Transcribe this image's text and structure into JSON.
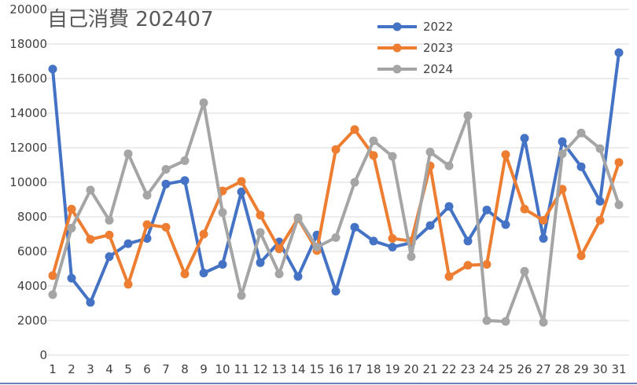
{
  "chart_data": {
    "type": "line",
    "title": "自己消費 202407",
    "xlabel": "",
    "ylabel": "",
    "ylim": [
      0,
      20000
    ],
    "yticks": [
      0,
      2000,
      4000,
      6000,
      8000,
      10000,
      12000,
      14000,
      16000,
      18000,
      20000
    ],
    "categories": [
      "1",
      "2",
      "3",
      "4",
      "5",
      "6",
      "7",
      "8",
      "9",
      "10",
      "11",
      "12",
      "13",
      "14",
      "15",
      "16",
      "17",
      "18",
      "19",
      "20",
      "21",
      "22",
      "23",
      "24",
      "25",
      "26",
      "27",
      "28",
      "29",
      "30",
      "31"
    ],
    "grid": true,
    "legend_position": "top-right",
    "series": [
      {
        "name": "2022",
        "color": "#4472c4",
        "values": [
          16550,
          4450,
          3050,
          5700,
          6450,
          6750,
          9900,
          10100,
          4750,
          5250,
          9450,
          5350,
          6550,
          4550,
          6950,
          3700,
          7400,
          6600,
          6250,
          6500,
          7500,
          8600,
          6600,
          8400,
          7550,
          12550,
          6750,
          12350,
          10900,
          8900,
          17500
        ]
      },
      {
        "name": "2023",
        "color": "#ed7d31",
        "values": [
          4600,
          8450,
          6700,
          6950,
          4100,
          7550,
          7400,
          4700,
          7000,
          9500,
          10050,
          8100,
          6150,
          7900,
          6050,
          11900,
          13050,
          11550,
          6750,
          6600,
          10950,
          4550,
          5200,
          5250,
          11600,
          8450,
          7800,
          9600,
          5750,
          7800,
          11150
        ]
      },
      {
        "name": "2024",
        "color": "#a5a5a5",
        "values": [
          3500,
          7350,
          9550,
          7800,
          11650,
          9250,
          10750,
          11250,
          14600,
          8250,
          3450,
          7100,
          4700,
          7950,
          6250,
          6800,
          10000,
          12400,
          11500,
          5700,
          11750,
          10950,
          13850,
          2000,
          1950,
          4850,
          1900,
          11650,
          12850,
          11950,
          8700
        ]
      }
    ]
  }
}
